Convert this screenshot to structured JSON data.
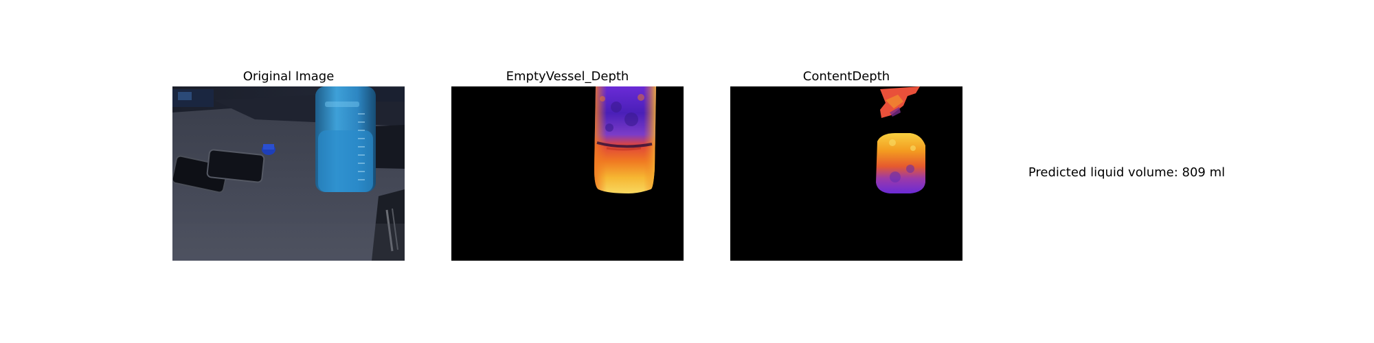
{
  "panels": [
    {
      "title": "Original Image"
    },
    {
      "title": "EmptyVessel_Depth"
    },
    {
      "title": "ContentDepth"
    }
  ],
  "prediction": {
    "text": "Predicted liquid volume: 809 ml"
  }
}
